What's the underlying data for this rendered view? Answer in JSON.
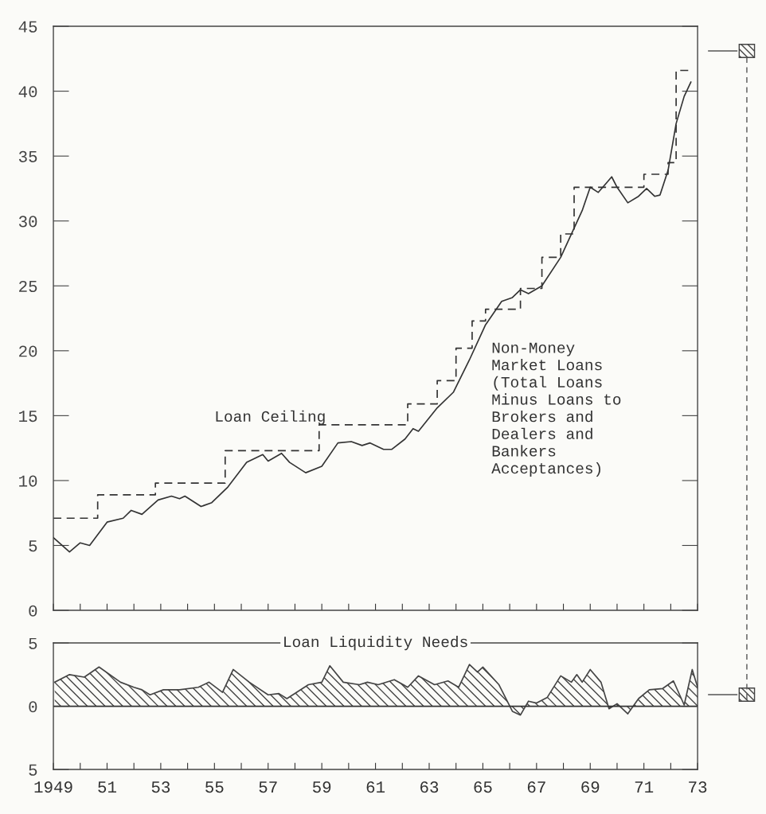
{
  "chart_data": [
    {
      "type": "line",
      "xlim": [
        1949,
        1973
      ],
      "ylim": [
        0,
        45
      ],
      "yticks": [
        0,
        5,
        10,
        15,
        20,
        25,
        30,
        35,
        40,
        45
      ],
      "xticks": [
        {
          "value": 1949,
          "label": null
        },
        {
          "value": 1950,
          "label": null
        },
        {
          "value": 1951,
          "label": null
        },
        {
          "value": 1952,
          "label": null
        },
        {
          "value": 1953,
          "label": null
        },
        {
          "value": 1954,
          "label": null
        },
        {
          "value": 1955,
          "label": null
        },
        {
          "value": 1956,
          "label": null
        },
        {
          "value": 1957,
          "label": null
        },
        {
          "value": 1958,
          "label": null
        },
        {
          "value": 1959,
          "label": null
        },
        {
          "value": 1960,
          "label": null
        },
        {
          "value": 1961,
          "label": null
        },
        {
          "value": 1962,
          "label": null
        },
        {
          "value": 1963,
          "label": null
        },
        {
          "value": 1964,
          "label": null
        },
        {
          "value": 1965,
          "label": null
        },
        {
          "value": 1966,
          "label": null
        },
        {
          "value": 1967,
          "label": null
        },
        {
          "value": 1968,
          "label": null
        },
        {
          "value": 1969,
          "label": null
        },
        {
          "value": 1970,
          "label": null
        },
        {
          "value": 1971,
          "label": null
        },
        {
          "value": 1972,
          "label": null
        },
        {
          "value": 1973,
          "label": null
        }
      ],
      "tick_labels": "y",
      "grid": false,
      "legend": false,
      "series": [
        {
          "name": "Loan Ceiling",
          "type": "step",
          "line_style": "dashed",
          "color": "#333333",
          "x": [
            1949,
            1950.65,
            1952.8,
            1955.4,
            1958.9,
            1962.2,
            1963.3,
            1964.0,
            1964.6,
            1965.1,
            1966.4,
            1967.2,
            1967.9,
            1968.4,
            1971.0,
            1971.9,
            1972.2,
            1972.75
          ],
          "values": [
            7.1,
            8.9,
            9.8,
            12.3,
            14.3,
            15.9,
            17.7,
            20.2,
            22.3,
            23.2,
            24.8,
            27.2,
            29.0,
            32.6,
            33.6,
            34.5,
            41.6,
            41.6
          ]
        },
        {
          "name": "Non-Money Market Loans (Total Loans Minus Loans to Brokers and Dealers and Bankers Acceptances)",
          "type": "line",
          "line_style": "solid",
          "color": "#333333",
          "x": [
            1949.0,
            1949.6,
            1950.0,
            1950.35,
            1951.0,
            1951.6,
            1951.9,
            1952.3,
            1952.9,
            1953.4,
            1953.7,
            1953.9,
            1954.5,
            1954.9,
            1955.5,
            1956.2,
            1956.8,
            1957.0,
            1957.5,
            1957.8,
            1958.4,
            1959.0,
            1959.6,
            1960.1,
            1960.5,
            1960.8,
            1961.3,
            1961.6,
            1962.1,
            1962.4,
            1962.6,
            1963.3,
            1963.9,
            1964.5,
            1965.1,
            1965.7,
            1966.1,
            1966.4,
            1966.7,
            1967.2,
            1967.9,
            1968.7,
            1969.0,
            1969.3,
            1969.8,
            1970.0,
            1970.4,
            1970.8,
            1971.1,
            1971.4,
            1971.6,
            1971.9,
            1972.2,
            1972.5,
            1972.75
          ],
          "values": [
            5.6,
            4.5,
            5.2,
            5.0,
            6.8,
            7.1,
            7.7,
            7.4,
            8.5,
            8.8,
            8.6,
            8.8,
            8.0,
            8.3,
            9.5,
            11.4,
            12.0,
            11.5,
            12.1,
            11.4,
            10.6,
            11.1,
            12.9,
            13.0,
            12.7,
            12.9,
            12.4,
            12.4,
            13.2,
            14.0,
            13.8,
            15.6,
            16.8,
            19.3,
            22.0,
            23.8,
            24.1,
            24.7,
            24.4,
            25.0,
            27.2,
            30.8,
            32.6,
            32.2,
            33.4,
            32.6,
            31.4,
            31.9,
            32.5,
            31.9,
            32.0,
            33.9,
            37.5,
            39.6,
            40.7
          ]
        }
      ]
    },
    {
      "type": "area",
      "title": "Loan Liquidity Needs",
      "xlim": [
        1949,
        1973
      ],
      "ylim": [
        -5,
        5
      ],
      "yticks": [
        {
          "value": -5,
          "label": "5"
        },
        0,
        5
      ],
      "xticks": [
        1949,
        {
          "value": 1950,
          "label": null
        },
        {
          "value": 1951,
          "label": "51"
        },
        {
          "value": 1952,
          "label": null
        },
        {
          "value": 1953,
          "label": "53"
        },
        {
          "value": 1954,
          "label": null
        },
        {
          "value": 1955,
          "label": "55"
        },
        {
          "value": 1956,
          "label": null
        },
        {
          "value": 1957,
          "label": "57"
        },
        {
          "value": 1958,
          "label": null
        },
        {
          "value": 1959,
          "label": "59"
        },
        {
          "value": 1960,
          "label": null
        },
        {
          "value": 1961,
          "label": "61"
        },
        {
          "value": 1962,
          "label": null
        },
        {
          "value": 1963,
          "label": "63"
        },
        {
          "value": 1964,
          "label": null
        },
        {
          "value": 1965,
          "label": "65"
        },
        {
          "value": 1966,
          "label": null
        },
        {
          "value": 1967,
          "label": "67"
        },
        {
          "value": 1968,
          "label": null
        },
        {
          "value": 1969,
          "label": "69"
        },
        {
          "value": 1970,
          "label": null
        },
        {
          "value": 1971,
          "label": "71"
        },
        {
          "value": 1972,
          "label": null
        },
        {
          "value": 1973,
          "label": "73"
        }
      ],
      "grid": false,
      "legend": false,
      "ref_lines": [
        {
          "axis": "y",
          "value": 0,
          "label": null,
          "color": "#333333"
        }
      ],
      "series": [
        {
          "color": "#444444",
          "x": [
            1949.05,
            1949.6,
            1950.15,
            1950.7,
            1951.5,
            1952.0,
            1952.3,
            1952.6,
            1953.1,
            1953.7,
            1954.4,
            1954.8,
            1955.3,
            1955.7,
            1956.3,
            1957.0,
            1957.4,
            1957.7,
            1958.5,
            1959.0,
            1959.3,
            1959.8,
            1960.4,
            1960.7,
            1961.1,
            1961.7,
            1962.2,
            1962.6,
            1963.2,
            1963.7,
            1964.1,
            1964.5,
            1964.8,
            1965.0,
            1965.6,
            1966.1,
            1966.4,
            1966.7,
            1967.0,
            1967.4,
            1967.9,
            1968.3,
            1968.5,
            1968.7,
            1969.0,
            1969.4,
            1969.7,
            1970.0,
            1970.4,
            1970.8,
            1971.2,
            1971.7,
            1972.1,
            1972.5,
            1972.8,
            1973.0
          ],
          "values": [
            1.9,
            2.5,
            2.3,
            3.1,
            1.9,
            1.5,
            1.3,
            0.9,
            1.3,
            1.3,
            1.5,
            1.9,
            1.1,
            2.9,
            1.9,
            0.9,
            1.0,
            0.6,
            1.7,
            1.9,
            3.2,
            1.9,
            1.7,
            1.9,
            1.7,
            2.1,
            1.5,
            2.4,
            1.7,
            2.0,
            1.5,
            3.3,
            2.7,
            3.1,
            1.7,
            -0.4,
            -0.7,
            0.4,
            0.25,
            0.7,
            2.4,
            1.9,
            2.5,
            1.9,
            2.9,
            1.9,
            -0.2,
            0.2,
            -0.6,
            0.6,
            1.3,
            1.4,
            2.0,
            0.1,
            2.9,
            1.5
          ]
        }
      ]
    }
  ]
}
